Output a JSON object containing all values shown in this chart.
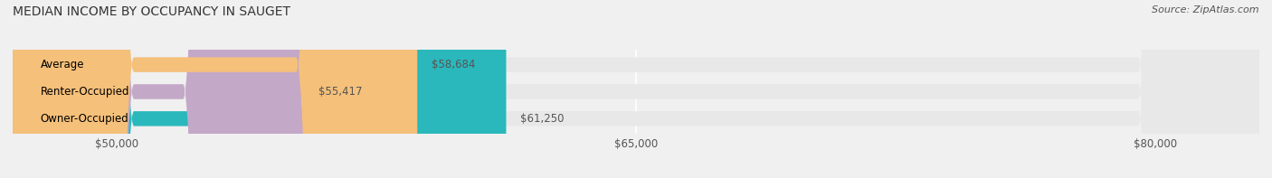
{
  "title": "MEDIAN INCOME BY OCCUPANCY IN SAUGET",
  "source": "Source: ZipAtlas.com",
  "categories": [
    "Owner-Occupied",
    "Renter-Occupied",
    "Average"
  ],
  "values": [
    61250,
    55417,
    58684
  ],
  "bar_colors": [
    "#2ab8bc",
    "#c4a8c8",
    "#f5c07a"
  ],
  "bar_labels": [
    "$61,250",
    "$55,417",
    "$58,684"
  ],
  "xlim_min": 47000,
  "xlim_max": 83000,
  "xticks": [
    50000,
    65000,
    80000
  ],
  "xtick_labels": [
    "$50,000",
    "$65,000",
    "$80,000"
  ],
  "background_color": "#f0f0f0",
  "bar_background_color": "#e8e8e8",
  "bar_height": 0.55,
  "title_fontsize": 10,
  "label_fontsize": 8.5,
  "tick_fontsize": 8.5,
  "source_fontsize": 8
}
